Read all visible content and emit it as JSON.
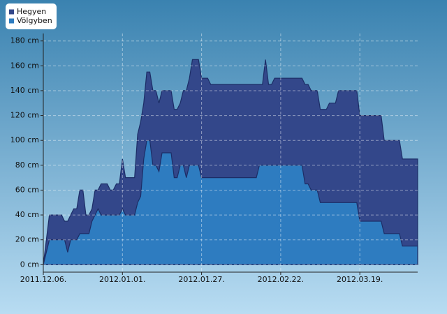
{
  "chart_data": {
    "type": "area",
    "x": [
      "2011.12.06.",
      "2011.12.08.",
      "2011.12.12.",
      "2011.12.13.",
      "2011.12.14.",
      "2011.12.15.",
      "2011.12.16.",
      "2011.12.17.",
      "2011.12.18.",
      "2011.12.19.",
      "2011.12.20.",
      "2011.12.21.",
      "2011.12.22.",
      "2011.12.23.",
      "2011.12.24.",
      "2011.12.25.",
      "2011.12.27.",
      "2011.12.28.",
      "2011.12.29.",
      "2011.12.30.",
      "2011.12.31.",
      "2012.01.01.",
      "2012.01.02.",
      "2012.01.05.",
      "2012.01.06.",
      "2012.01.07.",
      "2012.01.08.",
      "2012.01.09.",
      "2012.01.10.",
      "2012.01.11.",
      "2012.01.12.",
      "2012.01.13.",
      "2012.01.14.",
      "2012.01.17.",
      "2012.01.18.",
      "2012.01.19.",
      "2012.01.20.",
      "2012.01.21.",
      "2012.01.22.",
      "2012.01.23.",
      "2012.01.24.",
      "2012.01.26.",
      "2012.01.27.",
      "2012.01.29.",
      "2012.01.30.",
      "2012.02.14.",
      "2012.02.15.",
      "2012.02.16.",
      "2012.02.17.",
      "2012.02.18.",
      "2012.02.19.",
      "2012.02.20.",
      "2012.02.29.",
      "2012.03.01.",
      "2012.03.02.",
      "2012.03.03.",
      "2012.03.05.",
      "2012.03.06.",
      "2012.03.08.",
      "2012.03.09.",
      "2012.03.11.",
      "2012.03.12.",
      "2012.03.18.",
      "2012.03.19.",
      "2012.03.26.",
      "2012.03.27.",
      "2012.04.01.",
      "2012.04.02.",
      "2012.04.07."
    ],
    "series": [
      {
        "name": "Hegyen",
        "color": "#33478a",
        "values": [
          0,
          40,
          40,
          35,
          35,
          40,
          45,
          45,
          60,
          60,
          40,
          40,
          45,
          60,
          60,
          65,
          65,
          60,
          60,
          65,
          65,
          85,
          70,
          70,
          105,
          115,
          130,
          155,
          155,
          140,
          140,
          130,
          140,
          140,
          125,
          125,
          130,
          140,
          140,
          150,
          165,
          165,
          150,
          150,
          145,
          145,
          145,
          145,
          165,
          145,
          145,
          150,
          150,
          145,
          145,
          140,
          140,
          125,
          125,
          130,
          130,
          140,
          140,
          120,
          120,
          100,
          100,
          85,
          85
        ]
      },
      {
        "name": "Völgyben",
        "color": "#2e7cc0",
        "values": [
          0,
          20,
          20,
          20,
          10,
          20,
          20,
          20,
          25,
          25,
          25,
          25,
          35,
          40,
          45,
          40,
          40,
          40,
          40,
          40,
          40,
          45,
          40,
          40,
          50,
          55,
          85,
          100,
          100,
          80,
          80,
          75,
          90,
          90,
          70,
          70,
          80,
          80,
          70,
          80,
          80,
          80,
          70,
          70,
          70,
          70,
          80,
          80,
          80,
          80,
          80,
          80,
          80,
          65,
          65,
          60,
          60,
          50,
          50,
          50,
          50,
          50,
          50,
          35,
          35,
          25,
          25,
          15,
          15
        ]
      }
    ],
    "xlim": [
      "2011.12.06.",
      "2012.04.07."
    ],
    "xticks": [
      "2011.12.06.",
      "2012.01.01.",
      "2012.01.27.",
      "2012.02.22.",
      "2012.03.19."
    ],
    "ylim": [
      -6,
      186
    ],
    "yticks": [
      {
        "value": 0,
        "label": "0 cm"
      },
      {
        "value": 20,
        "label": "20 cm"
      },
      {
        "value": 40,
        "label": "40 cm"
      },
      {
        "value": 60,
        "label": "60 cm"
      },
      {
        "value": 80,
        "label": "80 cm"
      },
      {
        "value": 100,
        "label": "100 cm"
      },
      {
        "value": 120,
        "label": "120 cm"
      },
      {
        "value": 140,
        "label": "140 cm"
      },
      {
        "value": 160,
        "label": "160 cm"
      },
      {
        "value": 180,
        "label": "180 cm"
      }
    ],
    "grid": true
  }
}
